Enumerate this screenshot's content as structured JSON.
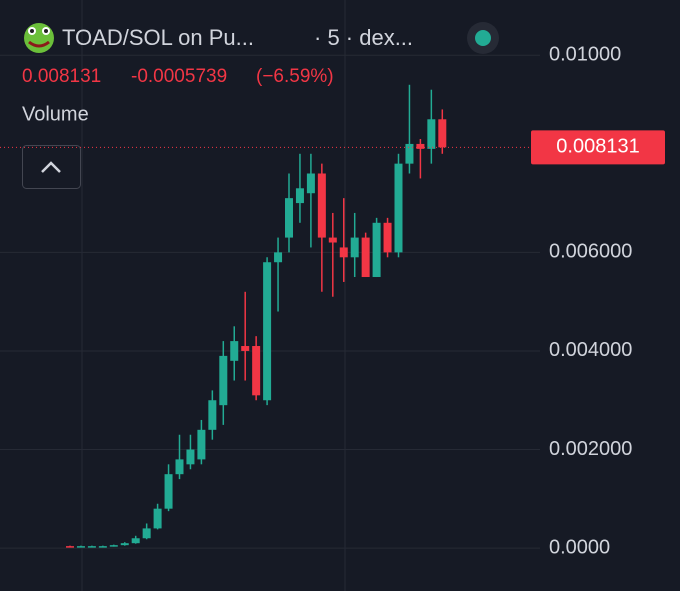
{
  "header": {
    "symbol": "TOAD/SOL on Pu...",
    "interval": "· 5 · dex...",
    "change": "-0.0005739",
    "change_pct": "(−6.59%)",
    "indicator": "Volume"
  },
  "chart_data": {
    "type": "candlestick",
    "open": [
      4e-05,
      3e-05,
      4e-05,
      4e-05,
      4e-05,
      6e-05,
      0.0001,
      0.0002,
      0.0004,
      0.0008,
      0.0015,
      0.0017,
      0.0018,
      0.0024,
      0.0029,
      0.0038,
      0.0041,
      0.0041,
      0.003,
      0.0058,
      0.0063,
      0.007,
      0.0072,
      0.0076,
      0.0063,
      0.0061,
      0.0059,
      0.0063,
      0.0055,
      0.0066,
      0.006,
      0.0078,
      0.0082,
      0.0081,
      0.0087
    ],
    "high": [
      5e-05,
      5e-05,
      5e-05,
      5e-05,
      7e-05,
      0.00012,
      0.00025,
      0.0005,
      0.0009,
      0.0017,
      0.0023,
      0.0023,
      0.0026,
      0.0032,
      0.0042,
      0.0045,
      0.0052,
      0.0043,
      0.0059,
      0.0063,
      0.0076,
      0.008,
      0.008,
      0.0078,
      0.0068,
      0.0071,
      0.0068,
      0.0064,
      0.0067,
      0.0067,
      0.008,
      0.0094,
      0.0083,
      0.0093,
      0.0089
    ],
    "low": [
      2e-05,
      2e-05,
      3e-05,
      3e-05,
      3e-05,
      5e-05,
      9e-05,
      0.00018,
      0.00038,
      0.00075,
      0.0014,
      0.0016,
      0.0017,
      0.0022,
      0.0025,
      0.0034,
      0.0034,
      0.003,
      0.0029,
      0.0048,
      0.006,
      0.0066,
      0.0061,
      0.0052,
      0.0051,
      0.0054,
      0.0055,
      0.0055,
      0.0055,
      0.0059,
      0.0059,
      0.0076,
      0.0075,
      0.0078,
      0.008
    ],
    "close": [
      3e-05,
      4e-05,
      4e-05,
      4e-05,
      6e-05,
      0.0001,
      0.0002,
      0.0004,
      0.0008,
      0.0015,
      0.0018,
      0.002,
      0.0024,
      0.003,
      0.0039,
      0.0042,
      0.004,
      0.0031,
      0.0058,
      0.006,
      0.0071,
      0.0073,
      0.0076,
      0.0063,
      0.0062,
      0.0059,
      0.0063,
      0.0055,
      0.0066,
      0.006,
      0.0078,
      0.0082,
      0.0081,
      0.0087,
      0.008131
    ],
    "up_color": "#22ab94",
    "down_color": "#f23645",
    "last_price": {
      "value": 0.008131,
      "label": "0.008131"
    },
    "ylim": [
      -0.00087,
      0.01112
    ],
    "yticks": [
      {
        "value": 0,
        "label": "0.0000"
      },
      {
        "value": 0.002,
        "label": "0.002000"
      },
      {
        "value": 0.004,
        "label": "0.004000"
      },
      {
        "value": 0.006,
        "label": "0.006000"
      },
      {
        "value": 0.01,
        "label": "0.01000"
      }
    ],
    "grid": true
  }
}
